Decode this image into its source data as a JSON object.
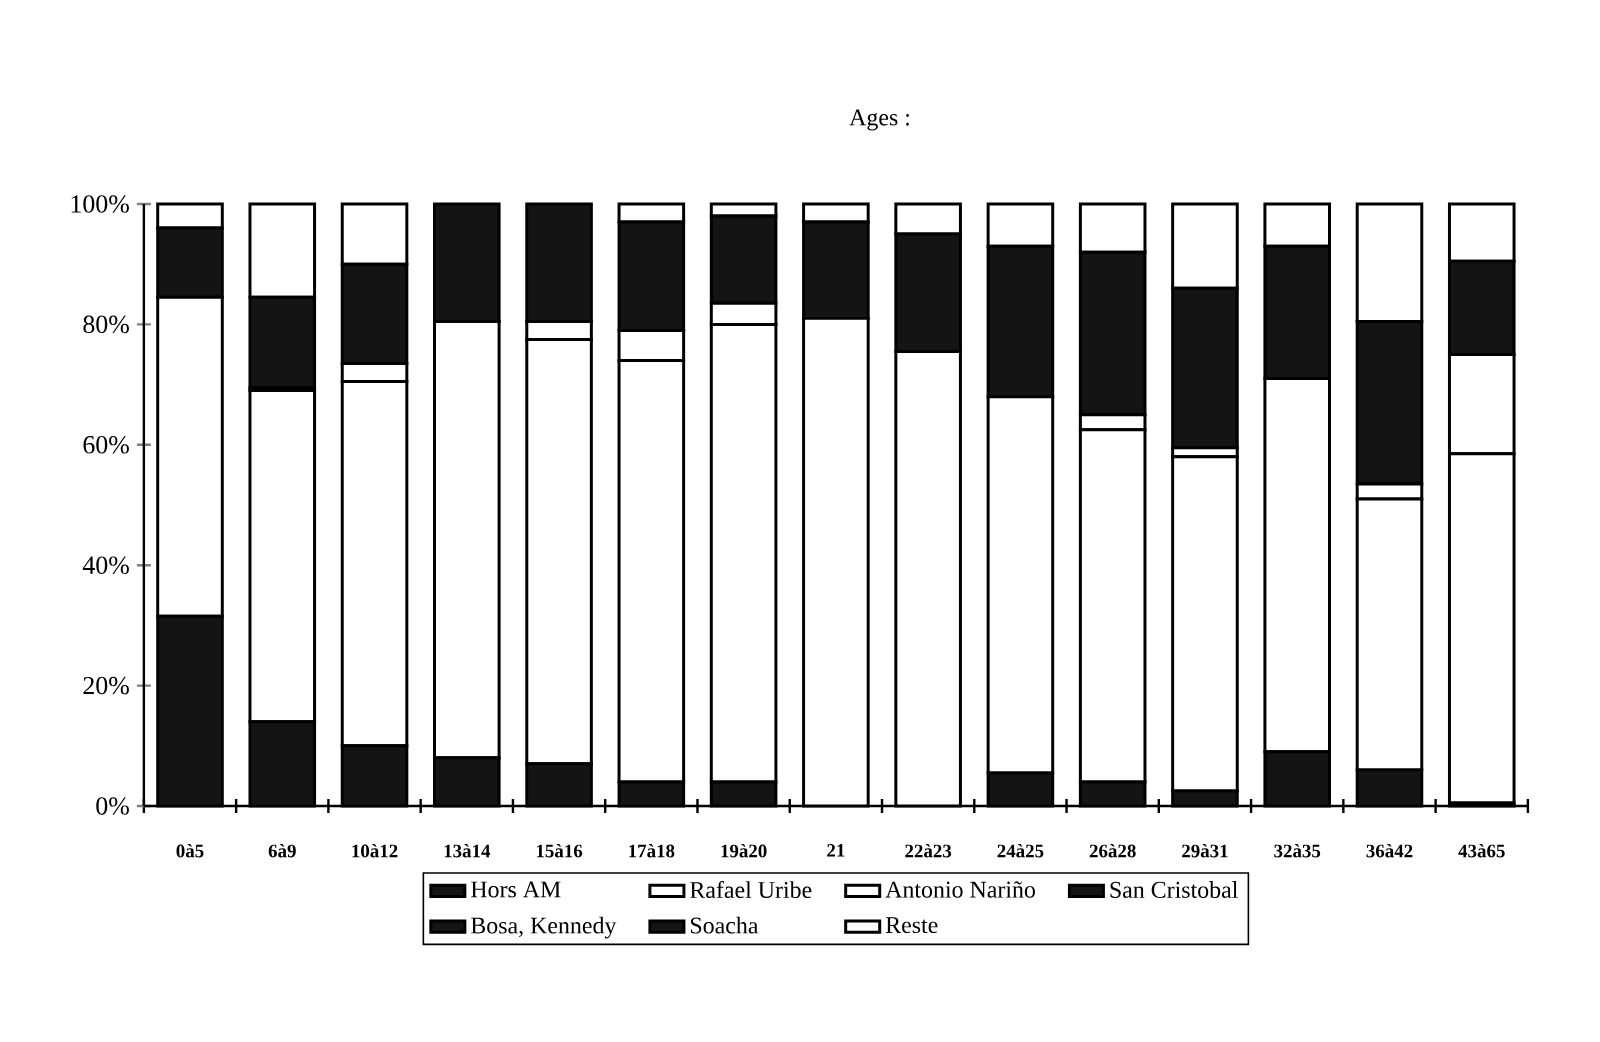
{
  "chart_data": {
    "type": "bar",
    "stacked": true,
    "title": "Ages :",
    "categories": [
      "0à5",
      "6à9",
      "10à12",
      "13à14",
      "15à16",
      "17à18",
      "19à20",
      "21",
      "22à23",
      "24à25",
      "26à28",
      "29à31",
      "32à35",
      "36à42",
      "43à65"
    ],
    "series": [
      {
        "name": "Hors AM",
        "color": "#141414",
        "values": [
          31.5,
          14,
          10,
          8,
          7,
          4,
          4,
          0,
          0,
          5.5,
          4,
          2.5,
          9,
          6,
          0.5
        ]
      },
      {
        "name": "Rafael Uribe",
        "color": "#ffffff",
        "values": [
          53,
          55,
          60.5,
          72.5,
          70.5,
          70,
          76,
          81,
          75.5,
          62.5,
          58.5,
          55.5,
          62,
          45,
          58
        ]
      },
      {
        "name": "Antonio Nariño",
        "color": "#ffffff",
        "values": [
          0,
          0.5,
          3,
          0,
          3,
          5,
          3.5,
          0,
          0,
          0,
          2.5,
          1.5,
          0,
          2.5,
          16.5
        ]
      },
      {
        "name": "San Cristobal",
        "color": "#141414",
        "values": [
          11.5,
          15,
          16.5,
          19.5,
          19.5,
          18,
          14.5,
          16,
          19.5,
          25,
          27,
          26.5,
          22,
          27,
          15.5
        ]
      },
      {
        "name": "Bosa, Kennedy",
        "color": "#141414",
        "values": [
          0,
          0,
          0,
          0,
          0,
          0,
          0,
          0,
          0,
          0,
          0,
          0,
          0,
          0,
          0
        ]
      },
      {
        "name": "Soacha",
        "color": "#141414",
        "values": [
          0,
          0,
          0,
          0,
          0,
          0,
          0,
          0,
          0,
          0,
          0,
          0,
          0,
          0,
          0
        ]
      },
      {
        "name": "Reste",
        "color": "#ffffff",
        "values": [
          4,
          15.5,
          10,
          0,
          0,
          3,
          2,
          3,
          5,
          7,
          8,
          14,
          7,
          19.5,
          9.5
        ]
      }
    ],
    "ylim": [
      0,
      100
    ],
    "yticks": [
      {
        "value": 0,
        "label": "0%"
      },
      {
        "value": 20,
        "label": "20%"
      },
      {
        "value": 40,
        "label": "40%"
      },
      {
        "value": 60,
        "label": "60%"
      },
      {
        "value": 80,
        "label": "80%"
      },
      {
        "value": 100,
        "label": "100%"
      }
    ],
    "grid": false,
    "legend": "bottom"
  }
}
